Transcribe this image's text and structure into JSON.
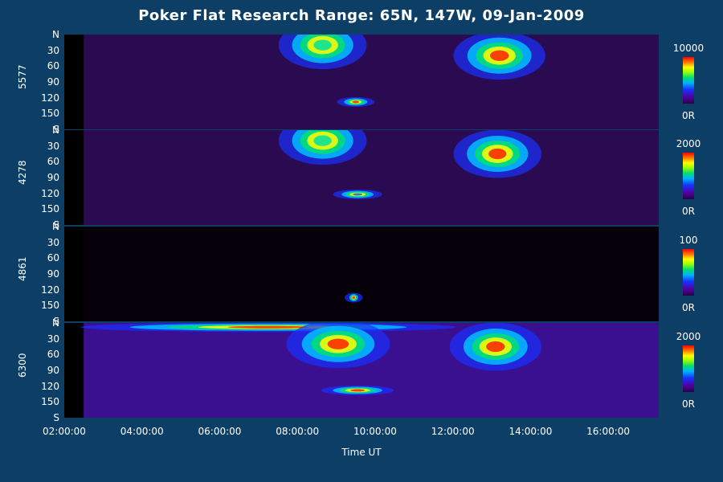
{
  "title": "Poker Flat Research Range: 65N, 147W, 09-Jan-2009",
  "xlabel": "Time UT",
  "x_ticks": [
    "02:00:00",
    "04:00:00",
    "06:00:00",
    "08:00:00",
    "10:00:00",
    "12:00:00",
    "14:00:00",
    "16:00:00"
  ],
  "y_ticks": [
    "N",
    "30",
    "60",
    "90",
    "120",
    "150",
    "S"
  ],
  "colors": {
    "background": "#0d3f66",
    "panel": "#000000",
    "low": "#2a0040",
    "high": "#ff0000"
  },
  "chart_data": [
    {
      "type": "heatmap",
      "wavelength": "5577",
      "colorbar": {
        "max": "10000",
        "min": "0R"
      },
      "x_range_hours": [
        2.0,
        17.3
      ],
      "y_range_deg": [
        0,
        180
      ],
      "features": [
        {
          "t_start": 7.6,
          "t_end": 9.7,
          "center_deg": 20,
          "intensity": "medium-high"
        },
        {
          "t_start": 9.1,
          "t_end": 9.9,
          "center_deg": 128,
          "intensity": "high"
        },
        {
          "t_start": 12.1,
          "t_end": 14.3,
          "center_deg": 40,
          "intensity": "high"
        }
      ]
    },
    {
      "type": "heatmap",
      "wavelength": "4278",
      "colorbar": {
        "max": "2000",
        "min": "0R"
      },
      "x_range_hours": [
        2.0,
        17.3
      ],
      "y_range_deg": [
        0,
        180
      ],
      "features": [
        {
          "t_start": 7.6,
          "t_end": 9.7,
          "center_deg": 20,
          "intensity": "medium-high"
        },
        {
          "t_start": 9.0,
          "t_end": 10.1,
          "center_deg": 122,
          "intensity": "medium"
        },
        {
          "t_start": 12.1,
          "t_end": 14.2,
          "center_deg": 45,
          "intensity": "high"
        }
      ]
    },
    {
      "type": "heatmap",
      "wavelength": "4861",
      "colorbar": {
        "max": "100",
        "min": "0R"
      },
      "x_range_hours": [
        2.0,
        17.3
      ],
      "y_range_deg": [
        0,
        180
      ],
      "features": [
        {
          "t_start": 9.3,
          "t_end": 9.6,
          "center_deg": 135,
          "intensity": "high"
        }
      ]
    },
    {
      "type": "heatmap",
      "wavelength": "6300",
      "colorbar": {
        "max": "2000",
        "min": "0R"
      },
      "x_range_hours": [
        2.0,
        17.3
      ],
      "y_range_deg": [
        0,
        180
      ],
      "features": [
        {
          "t_start": 2.5,
          "t_end": 12.0,
          "center_deg": 8,
          "intensity": "high"
        },
        {
          "t_start": 7.8,
          "t_end": 10.3,
          "center_deg": 40,
          "intensity": "high"
        },
        {
          "t_start": 8.7,
          "t_end": 10.4,
          "center_deg": 128,
          "intensity": "high"
        },
        {
          "t_start": 12.0,
          "t_end": 14.2,
          "center_deg": 45,
          "intensity": "high"
        }
      ]
    }
  ]
}
